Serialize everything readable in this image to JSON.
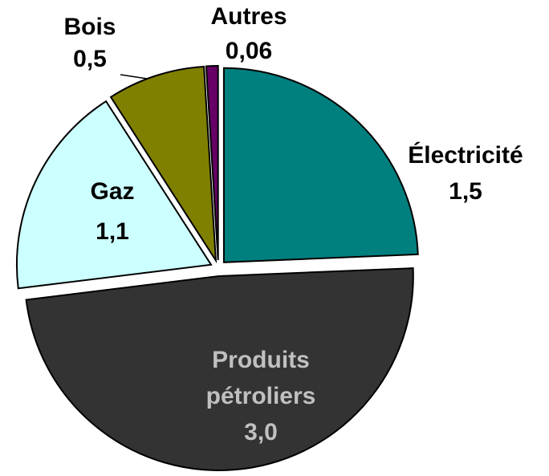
{
  "chart_data": {
    "type": "pie",
    "categories": [
      "Électricité",
      "Produits pétroliers",
      "Gaz",
      "Bois",
      "Autres"
    ],
    "values": [
      1.5,
      3.0,
      1.1,
      0.5,
      0.06
    ],
    "value_labels": [
      "1,5",
      "3,0",
      "1,1",
      "0,5",
      "0,06"
    ],
    "colors": [
      "#007f7f",
      "#333333",
      "#ccffff",
      "#808000",
      "#660066"
    ]
  }
}
